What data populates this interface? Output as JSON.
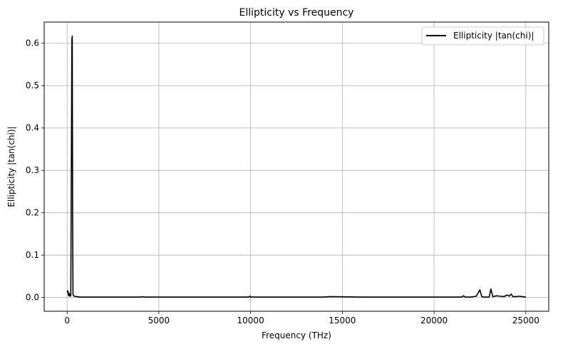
{
  "chart_data": {
    "type": "line",
    "title": "Ellipticity vs Frequency",
    "xlabel": "Frequency (THz)",
    "ylabel": "Ellipticity |tan(chi)|",
    "xlim": [
      -1250,
      26250
    ],
    "ylim": [
      -0.0325,
      0.65
    ],
    "xticks": [
      0,
      5000,
      10000,
      15000,
      20000,
      25000
    ],
    "xtick_labels": [
      "0",
      "5000",
      "10000",
      "15000",
      "20000",
      "25000"
    ],
    "yticks": [
      0.0,
      0.1,
      0.2,
      0.3,
      0.4,
      0.5,
      0.6
    ],
    "ytick_labels": [
      "0.0",
      "0.1",
      "0.2",
      "0.3",
      "0.4",
      "0.5",
      "0.6"
    ],
    "grid": true,
    "legend_position": "top-right",
    "series": [
      {
        "name": "Ellipticity |tan(chi)|",
        "color": "#000000",
        "x": [
          0,
          40,
          80,
          120,
          160,
          200,
          230,
          260,
          280,
          300,
          320,
          350,
          400,
          500,
          700,
          1000,
          2000,
          4000,
          4100,
          4200,
          6000,
          8000,
          9900,
          9950,
          10000,
          12000,
          14000,
          14300,
          16000,
          18000,
          20000,
          21500,
          21600,
          21700,
          22000,
          22300,
          22500,
          22600,
          22700,
          23000,
          23100,
          23200,
          23400,
          23600,
          23800,
          24000,
          24100,
          24200,
          24300,
          24500,
          24600,
          24800,
          25000
        ],
        "y": [
          0.012,
          0.016,
          0.004,
          0.01,
          0.003,
          0.004,
          0.3,
          0.61,
          0.617,
          0.2,
          0.008,
          0.004,
          0.003,
          0.002,
          0.001,
          0.001,
          0.001,
          0.001,
          0.002,
          0.001,
          0.001,
          0.001,
          0.001,
          0.003,
          0.001,
          0.001,
          0.001,
          0.002,
          0.001,
          0.001,
          0.001,
          0.001,
          0.004,
          0.001,
          0.001,
          0.003,
          0.018,
          0.002,
          0.001,
          0.001,
          0.02,
          0.002,
          0.004,
          0.003,
          0.002,
          0.006,
          0.003,
          0.008,
          0.002,
          0.002,
          0.003,
          0.002,
          0.001
        ]
      }
    ]
  }
}
